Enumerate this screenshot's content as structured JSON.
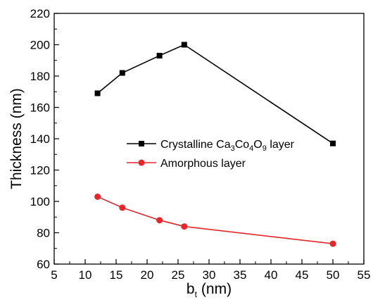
{
  "chart_data": {
    "type": "line",
    "xlabel": "b",
    "xlabel_subscript": "t",
    "xlabel_unit": "(nm)",
    "ylabel": "Thickness (nm)",
    "xlim": [
      5,
      55
    ],
    "ylim": [
      60,
      220
    ],
    "xticks": [
      5,
      10,
      15,
      20,
      25,
      30,
      35,
      40,
      45,
      50,
      55
    ],
    "yticks": [
      60,
      80,
      100,
      120,
      140,
      160,
      180,
      200,
      220
    ],
    "legend_position": "center-right",
    "series": [
      {
        "name_parts": [
          {
            "text": "Crystalline Ca"
          },
          {
            "text": "3",
            "sub": true
          },
          {
            "text": "Co"
          },
          {
            "text": "4",
            "sub": true
          },
          {
            "text": "O"
          },
          {
            "text": "9",
            "sub": true
          },
          {
            "text": " layer"
          }
        ],
        "color": "#000000",
        "marker": "square",
        "x": [
          12,
          16,
          22,
          26,
          50
        ],
        "y": [
          169,
          182,
          193,
          200,
          137
        ]
      },
      {
        "name_parts": [
          {
            "text": "Amorphous layer"
          }
        ],
        "color": "#e8262a",
        "marker": "circle",
        "x": [
          12,
          16,
          22,
          26,
          50
        ],
        "y": [
          103,
          96,
          88,
          84,
          73
        ]
      }
    ]
  }
}
